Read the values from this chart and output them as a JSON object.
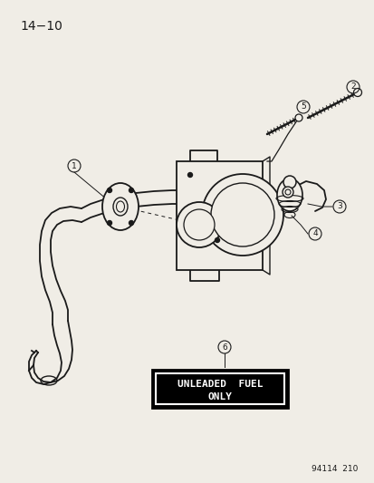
{
  "title": "14−10",
  "footer": "94114  210",
  "bg_color": "#f0ede6",
  "lc": "#1a1a1a",
  "part_labels": [
    1,
    2,
    3,
    4,
    5,
    6
  ],
  "label_circle_r": 7,
  "label_font_size": 6.5,
  "title_font_size": 10,
  "footer_font_size": 6.5
}
